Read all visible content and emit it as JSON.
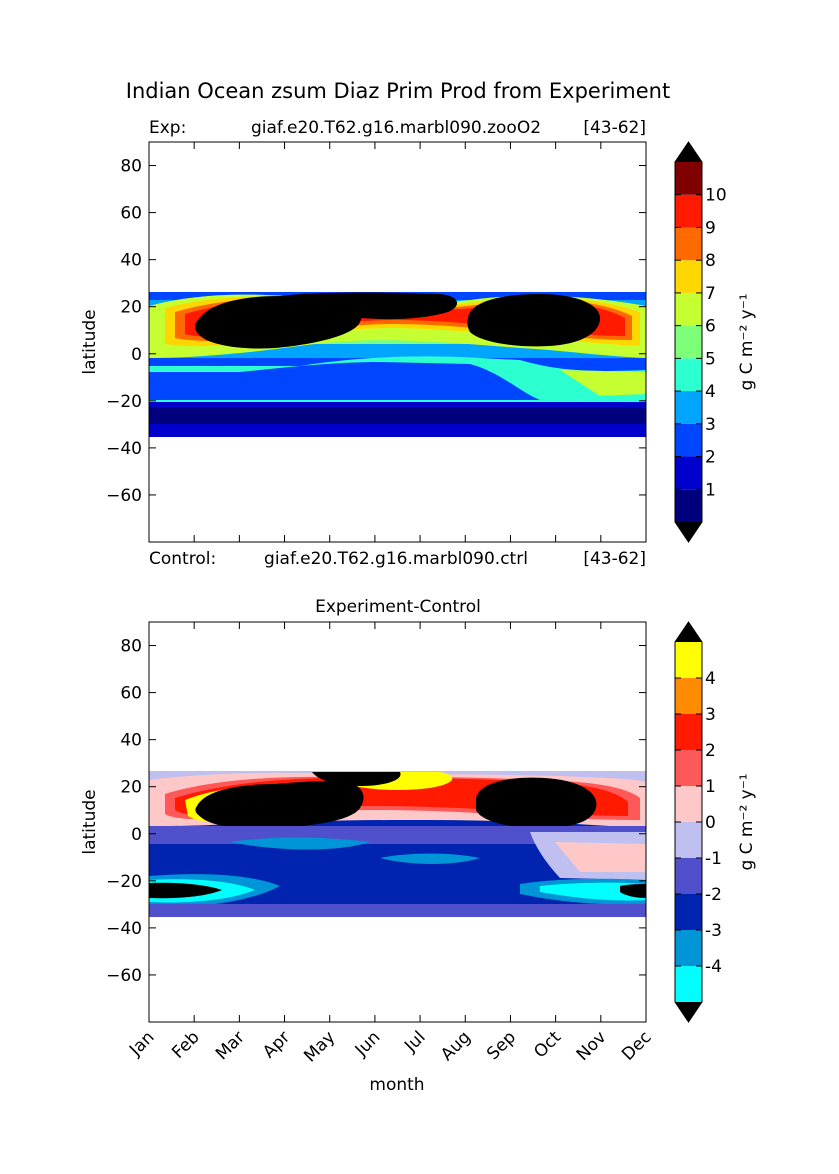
{
  "suptitle": "Indian Ocean zsum Diaz Prim Prod from Experiment",
  "top_panel": {
    "exp_prefix": "Exp:",
    "exp_name": "giaf.e20.T62.g16.marbl090.zooO2",
    "exp_years": "[43-62]",
    "ctrl_prefix": "Control:",
    "ctrl_name": "giaf.e20.T62.g16.marbl090.ctrl",
    "ctrl_years": "[43-62]"
  },
  "bottom_panel": {
    "title": "Experiment-Control"
  },
  "chart_data": [
    {
      "type": "heatmap",
      "panel": "experiment",
      "ylabel": "latitude",
      "yticks": [
        "80",
        "60",
        "40",
        "20",
        "0",
        "−20",
        "−40",
        "−60"
      ],
      "ylim": [
        -80,
        90
      ],
      "xlim": [
        "Jan",
        "Dec"
      ],
      "months": [
        "Jan",
        "Feb",
        "Mar",
        "Apr",
        "May",
        "Jun",
        "Jul",
        "Aug",
        "Sep",
        "Oct",
        "Nov",
        "Dec"
      ],
      "data_lat_range": [
        -35,
        27
      ],
      "colorbar": {
        "label": "g C m⁻² y⁻¹",
        "ticks": [
          "1",
          "2",
          "3",
          "4",
          "5",
          "6",
          "7",
          "8",
          "9",
          "10"
        ],
        "levels": [
          0,
          1,
          2,
          3,
          4,
          5,
          6,
          7,
          8,
          9,
          10,
          11
        ],
        "colors": [
          "#00007f",
          "#0000cc",
          "#0045ff",
          "#00a5ff",
          "#2cffd0",
          "#7dff7a",
          "#c6ff31",
          "#ffd700",
          "#ff6a00",
          "#ff1a00",
          "#800000"
        ],
        "under_color": "#000000",
        "over_color": "#000000",
        "extend": "both"
      },
      "grid": false
    },
    {
      "type": "heatmap",
      "panel": "difference",
      "ylabel": "latitude",
      "xlabel": "month",
      "yticks": [
        "80",
        "60",
        "40",
        "20",
        "0",
        "−20",
        "−40",
        "−60"
      ],
      "ylim": [
        -80,
        90
      ],
      "xticks": [
        "Jan",
        "Feb",
        "Mar",
        "Apr",
        "May",
        "Jun",
        "Jul",
        "Aug",
        "Sep",
        "Oct",
        "Nov",
        "Dec"
      ],
      "data_lat_range": [
        -35,
        27
      ],
      "colorbar": {
        "label": "g C m⁻² y⁻¹",
        "ticks": [
          "4",
          "3",
          "2",
          "1",
          "0",
          "-1",
          "-2",
          "-3",
          "-4"
        ],
        "levels": [
          -5,
          -4,
          -3,
          -2,
          -1,
          0,
          1,
          2,
          3,
          4,
          5
        ],
        "colors": [
          "#00ffff",
          "#0095d6",
          "#0024b0",
          "#5050cc",
          "#c0c0f0",
          "#ffc8c8",
          "#ff5858",
          "#ff1a00",
          "#ff8c00",
          "#ffff00"
        ],
        "under_color": "#000000",
        "over_color": "#000000",
        "extend": "both"
      },
      "grid": false
    }
  ]
}
